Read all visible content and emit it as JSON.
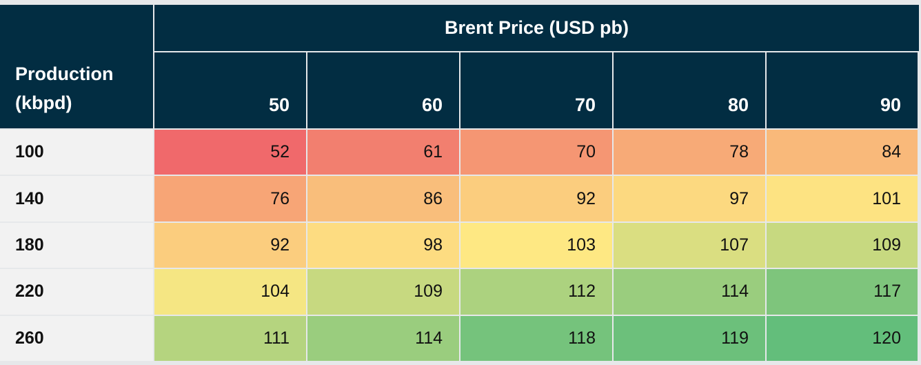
{
  "table": {
    "column_group": "Brent Price (USD pb)",
    "row_header": "Production (kbpd)",
    "columns": [
      "50",
      "60",
      "70",
      "80",
      "90"
    ],
    "rows": [
      {
        "label": "100",
        "cells": [
          "52",
          "61",
          "70",
          "78",
          "84"
        ]
      },
      {
        "label": "140",
        "cells": [
          "76",
          "86",
          "92",
          "97",
          "101"
        ]
      },
      {
        "label": "180",
        "cells": [
          "92",
          "98",
          "103",
          "107",
          "109"
        ]
      },
      {
        "label": "220",
        "cells": [
          "104",
          "109",
          "112",
          "114",
          "117"
        ]
      },
      {
        "label": "260",
        "cells": [
          "111",
          "114",
          "118",
          "119",
          "120"
        ]
      }
    ]
  }
}
